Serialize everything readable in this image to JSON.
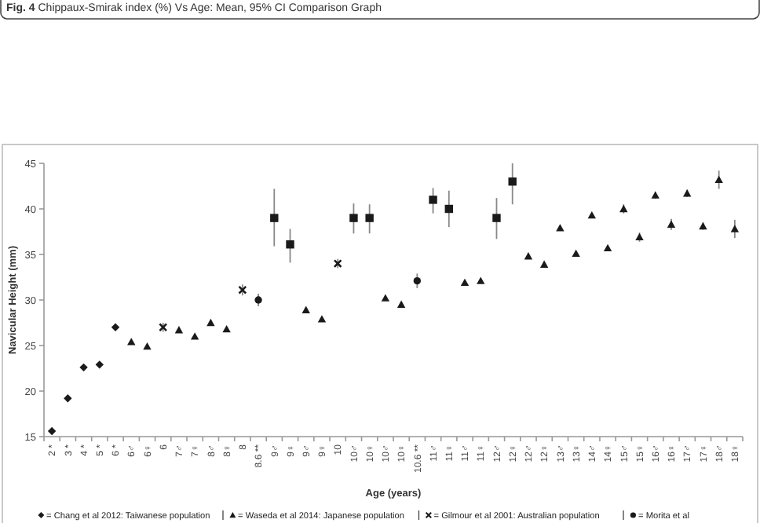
{
  "chart_data": {
    "type": "scatter",
    "title": "Fig. 4 Chippaux-Smirak index (%) Vs Age: Mean, 95% CI Comparison Graph",
    "xlabel": "Age (years)",
    "ylabel": "Navicular Height (mm)",
    "categories": [
      "2 *",
      "3 *",
      "4 *",
      "5 *",
      "6 *",
      "6♂",
      "6♀",
      "6",
      "7♂",
      "7♀",
      "8♂",
      "8♀",
      "8",
      "8.6 **",
      "9♂",
      "9♀",
      "9♂",
      "9♀",
      "10",
      "10♂",
      "10♀",
      "10♂",
      "10♀",
      "10.6 **",
      "11♂",
      "11♀",
      "11♂",
      "11♀",
      "12♂",
      "12♀",
      "12♂",
      "12♀",
      "13♂",
      "13♀",
      "14♂",
      "14♀",
      "15♂",
      "15♀",
      "16♂",
      "16♀",
      "17♂",
      "17♀",
      "18♂",
      "18♀"
    ],
    "ylim": [
      15,
      45
    ],
    "yticks": [
      15,
      20,
      25,
      30,
      35,
      40,
      45
    ],
    "legend": "bottom",
    "series": [
      {
        "name": "= Chang et al 2012: Taiwanese population",
        "marker": "diamond",
        "color": "#1a1a1a",
        "values": [
          15.6,
          19.2,
          22.6,
          22.9,
          27.0,
          null,
          null,
          null,
          null,
          null,
          null,
          null,
          null,
          null,
          null,
          null,
          null,
          null,
          null,
          null,
          null,
          null,
          null,
          null,
          null,
          null,
          null,
          null,
          null,
          null,
          null,
          null,
          null,
          null,
          null,
          null,
          null,
          null,
          null,
          null,
          null,
          null,
          null,
          null
        ]
      },
      {
        "name": "= Waseda et al 2014:  Japanese population",
        "marker": "triangle",
        "color": "#1a1a1a",
        "values": [
          null,
          null,
          null,
          null,
          null,
          25.4,
          24.9,
          null,
          26.7,
          26.0,
          27.5,
          26.8,
          null,
          null,
          null,
          null,
          28.9,
          27.9,
          null,
          null,
          null,
          30.2,
          29.5,
          null,
          null,
          null,
          31.9,
          32.1,
          null,
          null,
          34.8,
          33.9,
          37.9,
          35.1,
          39.3,
          35.7,
          40.0,
          36.9,
          41.5,
          38.3,
          41.7,
          38.1,
          43.2,
          37.8
        ],
        "errors": [
          null,
          null,
          null,
          null,
          null,
          null,
          null,
          null,
          null,
          null,
          null,
          null,
          null,
          null,
          null,
          null,
          null,
          null,
          null,
          null,
          null,
          null,
          null,
          null,
          null,
          null,
          null,
          null,
          null,
          null,
          null,
          null,
          null,
          null,
          null,
          null,
          0.5,
          0.5,
          0.4,
          0.6,
          0.4,
          0.4,
          1,
          1
        ]
      },
      {
        "name": "= Gilmour et al 2001: Australian population",
        "marker": "cross",
        "color": "#1a1a1a",
        "values": [
          null,
          null,
          null,
          null,
          null,
          null,
          null,
          27.0,
          null,
          null,
          null,
          null,
          31.1,
          null,
          null,
          null,
          null,
          null,
          34.0,
          null,
          null,
          null,
          null,
          null,
          null,
          null,
          null,
          null,
          null,
          null,
          null,
          null,
          null,
          null,
          null,
          null,
          null,
          null,
          null,
          null,
          null,
          null,
          null,
          null
        ],
        "errors": [
          null,
          null,
          null,
          null,
          null,
          null,
          null,
          0.5,
          null,
          null,
          null,
          null,
          0.6,
          null,
          null,
          null,
          null,
          null,
          0.5,
          null,
          null,
          null,
          null,
          null,
          null,
          null,
          null,
          null,
          null,
          null,
          null,
          null,
          null,
          null,
          null,
          null,
          null,
          null,
          null,
          null,
          null,
          null,
          null,
          null
        ]
      },
      {
        "name": "= Morita et al",
        "marker": "circle",
        "color": "#1a1a1a",
        "values": [
          null,
          null,
          null,
          null,
          null,
          null,
          null,
          null,
          null,
          null,
          null,
          null,
          null,
          30.0,
          null,
          null,
          null,
          null,
          null,
          null,
          null,
          null,
          null,
          32.1,
          null,
          null,
          null,
          null,
          null,
          null,
          null,
          null,
          null,
          null,
          null,
          null,
          null,
          null,
          null,
          null,
          null,
          null,
          null,
          null
        ],
        "errors": [
          null,
          null,
          null,
          null,
          null,
          null,
          null,
          null,
          null,
          null,
          null,
          null,
          null,
          0.7,
          null,
          null,
          null,
          null,
          null,
          null,
          null,
          null,
          null,
          0.8,
          null,
          null,
          null,
          null,
          null,
          null,
          null,
          null,
          null,
          null,
          null,
          null,
          null,
          null,
          null,
          null,
          null,
          null,
          null,
          null
        ]
      },
      {
        "marker": "square",
        "color": "#1a1a1a",
        "values": [
          null,
          null,
          null,
          null,
          null,
          null,
          null,
          null,
          null,
          null,
          null,
          null,
          null,
          null,
          39,
          36.1,
          null,
          null,
          null,
          39,
          39,
          null,
          null,
          null,
          41,
          40,
          null,
          null,
          39,
          43,
          null,
          null,
          null,
          null,
          null,
          null,
          null,
          null,
          null,
          null,
          null,
          null,
          null,
          null
        ],
        "errors": [
          null,
          null,
          null,
          null,
          null,
          null,
          null,
          null,
          null,
          null,
          null,
          null,
          null,
          null,
          [
            35.9,
            42.2
          ],
          [
            34.1,
            37.8
          ],
          null,
          null,
          null,
          [
            37.3,
            40.6
          ],
          [
            37.3,
            40.5
          ],
          null,
          null,
          null,
          [
            39.5,
            42.3
          ],
          [
            38,
            42
          ],
          null,
          null,
          [
            36.7,
            41.2
          ],
          [
            40.5,
            45
          ],
          null,
          null,
          null,
          null,
          null,
          null,
          null,
          null,
          null,
          null,
          null,
          null,
          null,
          null
        ]
      }
    ]
  }
}
